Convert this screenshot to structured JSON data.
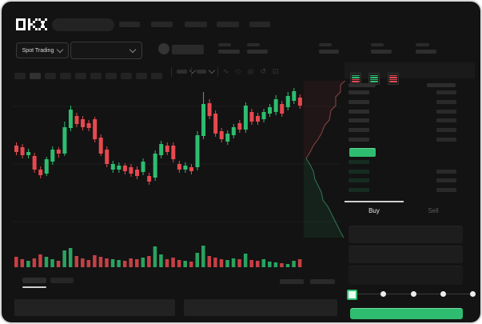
{
  "app": {
    "logo_text": "OKX"
  },
  "colors": {
    "green": "#2ebd70",
    "red": "#e6494f",
    "panel": "#1a1a1a",
    "bg": "#131313"
  },
  "header": {
    "market_selector_label": "Spot Trading"
  },
  "chart_toolbar": {
    "timeframe_count": 10,
    "active_timeframe_index": 1,
    "icons": [
      {
        "name": "curve-icon",
        "glyph": "∿"
      },
      {
        "name": "brush-icon",
        "glyph": "◇"
      },
      {
        "name": "camera-icon",
        "glyph": "◎"
      },
      {
        "name": "history-icon",
        "glyph": "↺"
      },
      {
        "name": "fullscreen-icon",
        "glyph": "⊡"
      }
    ]
  },
  "orderbook": {
    "view_toggles": [
      "book-all-icon",
      "book-bids-icon",
      "book-asks-icon"
    ],
    "ask_rows": [
      {
        "amount": true
      },
      {
        "amount": true
      },
      {
        "amount": true
      },
      {
        "amount": true
      },
      {
        "amount": true
      },
      {
        "amount": true
      }
    ],
    "last_price_highlight": {
      "color": "#2ebd70"
    },
    "bid_rows": [
      {
        "amount": false
      },
      {
        "amount": true
      },
      {
        "amount": true
      },
      {
        "amount": true
      }
    ]
  },
  "trade_panel": {
    "tabs": [
      {
        "label": "Buy",
        "active": true
      },
      {
        "label": "Sell",
        "active": false
      }
    ],
    "field_count": 3,
    "slider": {
      "stops": [
        0,
        25,
        50,
        75,
        100
      ],
      "value": 0
    },
    "submit_button_label": ""
  },
  "chart_data": {
    "type": "candlestick",
    "title": "",
    "xlabel": "",
    "ylabel": "",
    "legend": false,
    "grid": true,
    "gridlines_y_units": [
      20,
      92,
      164
    ],
    "ylim": [
      60,
      200
    ],
    "candles_ohlc": [
      [
        115,
        119,
        103,
        107
      ],
      [
        113,
        117,
        99,
        103
      ],
      [
        103,
        111,
        99,
        107
      ],
      [
        102,
        106,
        81,
        85
      ],
      [
        85,
        89,
        74,
        78
      ],
      [
        80,
        101,
        77,
        98
      ],
      [
        95,
        114,
        91,
        110
      ],
      [
        110,
        113,
        100,
        105
      ],
      [
        105,
        145,
        102,
        138
      ],
      [
        137,
        165,
        133,
        160
      ],
      [
        152,
        156,
        138,
        142
      ],
      [
        148,
        152,
        134,
        138
      ],
      [
        143,
        147,
        133,
        137
      ],
      [
        148,
        151,
        119,
        123
      ],
      [
        125,
        129,
        102,
        105
      ],
      [
        110,
        114,
        88,
        92
      ],
      [
        85,
        96,
        81,
        92
      ],
      [
        85,
        94,
        81,
        90
      ],
      [
        90,
        93,
        79,
        83
      ],
      [
        88,
        92,
        76,
        80
      ],
      [
        85,
        89,
        73,
        77
      ],
      [
        82,
        99,
        78,
        95
      ],
      [
        77,
        81,
        66,
        70
      ],
      [
        75,
        109,
        71,
        105
      ],
      [
        103,
        121,
        99,
        117
      ],
      [
        115,
        119,
        103,
        107
      ],
      [
        115,
        119,
        94,
        98
      ],
      [
        92,
        96,
        81,
        85
      ],
      [
        85,
        94,
        81,
        90
      ],
      [
        88,
        92,
        79,
        83
      ],
      [
        88,
        133,
        84,
        128
      ],
      [
        127,
        182,
        123,
        167
      ],
      [
        168,
        173,
        148,
        152
      ],
      [
        155,
        159,
        126,
        130
      ],
      [
        133,
        137,
        119,
        123
      ],
      [
        120,
        134,
        116,
        130
      ],
      [
        128,
        142,
        124,
        138
      ],
      [
        143,
        147,
        131,
        135
      ],
      [
        135,
        169,
        131,
        165
      ],
      [
        157,
        161,
        141,
        145
      ],
      [
        152,
        156,
        141,
        145
      ],
      [
        148,
        161,
        144,
        157
      ],
      [
        155,
        167,
        151,
        163
      ],
      [
        157,
        178,
        153,
        173
      ],
      [
        167,
        171,
        151,
        155
      ],
      [
        163,
        182,
        159,
        177
      ],
      [
        171,
        187,
        167,
        183
      ],
      [
        175,
        179,
        161,
        165
      ]
    ],
    "volumes": [
      13,
      10,
      8,
      11,
      16,
      13,
      10,
      8,
      21,
      24,
      14,
      11,
      9,
      15,
      13,
      11,
      10,
      9,
      8,
      11,
      10,
      12,
      14,
      26,
      16,
      10,
      12,
      9,
      8,
      7,
      18,
      27,
      14,
      12,
      10,
      9,
      11,
      10,
      17,
      9,
      8,
      10,
      7,
      6,
      5,
      4,
      8,
      10
    ],
    "depth": {
      "asks": [
        [
          416,
          3
        ],
        [
          410,
          8
        ],
        [
          410,
          17
        ],
        [
          404,
          23
        ],
        [
          404,
          34
        ],
        [
          398,
          40
        ],
        [
          396,
          52
        ],
        [
          390,
          59
        ],
        [
          386,
          69
        ],
        [
          382,
          76
        ],
        [
          376,
          84
        ],
        [
          372,
          92
        ],
        [
          367,
          100
        ]
      ],
      "bids": [
        [
          367,
          100
        ],
        [
          372,
          108
        ],
        [
          376,
          116
        ],
        [
          378,
          126
        ],
        [
          382,
          134
        ],
        [
          386,
          142
        ],
        [
          388,
          152
        ],
        [
          394,
          160
        ],
        [
          398,
          168
        ],
        [
          402,
          176
        ],
        [
          406,
          184
        ],
        [
          410,
          192
        ],
        [
          414,
          199
        ]
      ]
    }
  }
}
